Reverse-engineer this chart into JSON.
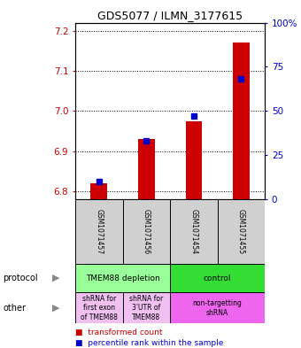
{
  "title": "GDS5077 / ILMN_3177615",
  "samples": [
    "GSM1071457",
    "GSM1071456",
    "GSM1071454",
    "GSM1071455"
  ],
  "transformed_counts": [
    6.82,
    6.93,
    6.975,
    7.17
  ],
  "percentile_ranks": [
    10,
    33,
    47,
    68
  ],
  "ylim_left": [
    6.78,
    7.22
  ],
  "ylim_right": [
    0,
    100
  ],
  "left_ticks": [
    6.8,
    6.9,
    7.0,
    7.1,
    7.2
  ],
  "right_ticks": [
    0,
    25,
    50,
    75,
    100
  ],
  "right_tick_labels": [
    "0",
    "25",
    "50",
    "75",
    "100%"
  ],
  "bar_color_red": "#cc0000",
  "bar_color_blue": "#0000cc",
  "protocol_labels": [
    "TMEM88 depletion",
    "control"
  ],
  "protocol_colors": [
    "#99ff99",
    "#33dd33"
  ],
  "other_labels": [
    "shRNA for\nfirst exon\nof TMEM88",
    "shRNA for\n3'UTR of\nTMEM88",
    "non-targetting\nshRNA"
  ],
  "other_colors": [
    "#f0c0f0",
    "#f0c0f0",
    "#ee66ee"
  ],
  "legend_red": "transformed count",
  "legend_blue": "percentile rank within the sample",
  "row_label_protocol": "protocol",
  "row_label_other": "other",
  "sample_bg": "#d0d0d0"
}
